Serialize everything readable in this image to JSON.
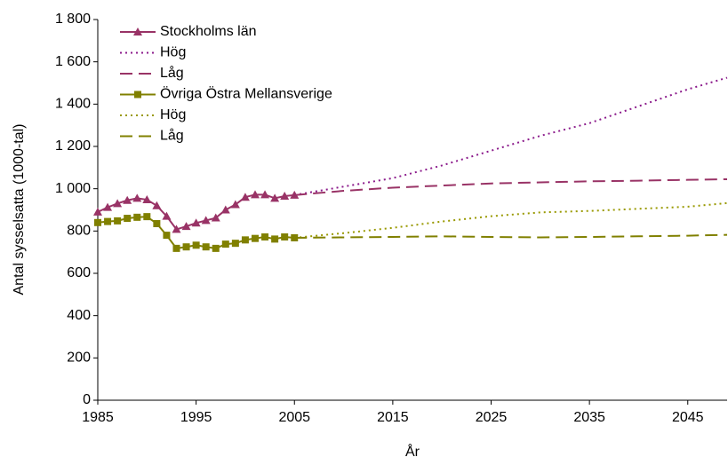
{
  "chart_data": {
    "type": "line",
    "x_label": "År",
    "y_label": "Antal sysselsatta (1000-tal)",
    "xlim": [
      1985,
      2049
    ],
    "xticks": [
      1985,
      1995,
      2005,
      2015,
      2025,
      2035,
      2045
    ],
    "ylim": [
      0,
      1800
    ],
    "yticks": [
      0,
      200,
      400,
      600,
      800,
      {
        "value": 1000,
        "label": "1 000"
      },
      {
        "value": 1200,
        "label": "1 200"
      },
      {
        "value": 1400,
        "label": "1 400"
      },
      {
        "value": 1600,
        "label": "1 600"
      },
      {
        "value": 1800,
        "label": "1 800"
      }
    ],
    "grid": false,
    "legend": "top-left",
    "series": [
      {
        "name": "Stockholms län",
        "color": "#993366",
        "style": "solid",
        "marker": "triangle",
        "x": [
          1985,
          1986,
          1987,
          1988,
          1989,
          1990,
          1991,
          1992,
          1993,
          1994,
          1995,
          1996,
          1997,
          1998,
          1999,
          2000,
          2001,
          2002,
          2003,
          2004,
          2005
        ],
        "values": [
          890,
          912,
          930,
          945,
          955,
          948,
          920,
          870,
          808,
          822,
          838,
          850,
          862,
          900,
          925,
          960,
          972,
          972,
          955,
          965,
          970
        ]
      },
      {
        "name": "Hög",
        "color": "#8b1a8b",
        "style": "dotted",
        "marker": "none",
        "x": [
          2005,
          2010,
          2015,
          2020,
          2025,
          2030,
          2035,
          2040,
          2045,
          2049
        ],
        "values": [
          970,
          1010,
          1050,
          1110,
          1180,
          1250,
          1310,
          1390,
          1470,
          1525
        ]
      },
      {
        "name": "Låg",
        "color": "#993366",
        "style": "dashed",
        "marker": "none",
        "x": [
          2005,
          2010,
          2015,
          2020,
          2025,
          2030,
          2035,
          2040,
          2045,
          2049
        ],
        "values": [
          970,
          990,
          1005,
          1015,
          1025,
          1030,
          1035,
          1038,
          1042,
          1045
        ]
      },
      {
        "name": "Övriga Östra Mellansverige",
        "color": "#808000",
        "style": "solid",
        "marker": "square",
        "x": [
          1985,
          1986,
          1987,
          1988,
          1989,
          1990,
          1991,
          1992,
          1993,
          1994,
          1995,
          1996,
          1997,
          1998,
          1999,
          2000,
          2001,
          2002,
          2003,
          2004,
          2005
        ],
        "values": [
          840,
          845,
          848,
          860,
          865,
          868,
          835,
          780,
          718,
          725,
          733,
          725,
          718,
          738,
          742,
          758,
          765,
          772,
          762,
          772,
          768
        ]
      },
      {
        "name": "Hög",
        "color": "#999900",
        "style": "dotted",
        "marker": "none",
        "x": [
          2005,
          2010,
          2015,
          2020,
          2025,
          2030,
          2035,
          2040,
          2045,
          2049
        ],
        "values": [
          768,
          790,
          815,
          845,
          870,
          888,
          895,
          905,
          915,
          932
        ]
      },
      {
        "name": "Låg",
        "color": "#808000",
        "style": "dashed",
        "marker": "none",
        "x": [
          2005,
          2010,
          2015,
          2020,
          2025,
          2030,
          2035,
          2040,
          2045,
          2049
        ],
        "values": [
          768,
          770,
          772,
          775,
          772,
          770,
          772,
          775,
          778,
          782
        ]
      }
    ]
  }
}
